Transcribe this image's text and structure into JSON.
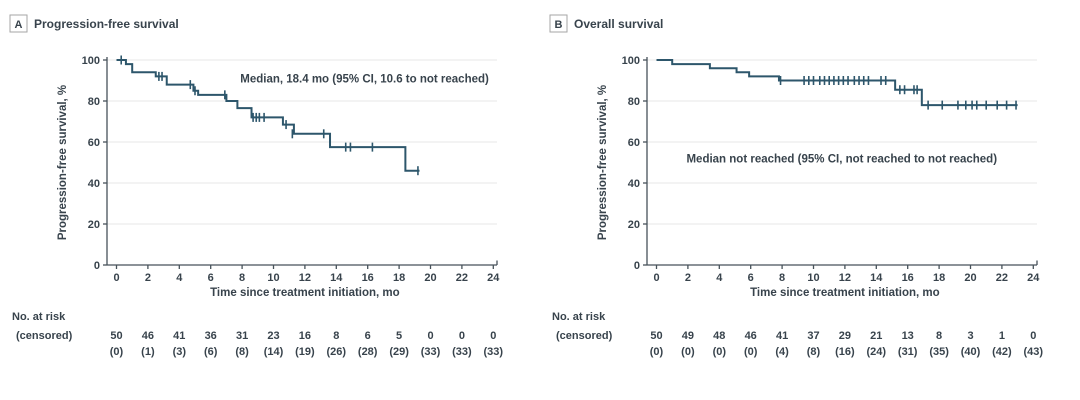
{
  "figure": {
    "risk_header_line1": "No. at risk",
    "risk_header_line2": "(censored)"
  },
  "colors": {
    "curve": "#2d566b",
    "text": "#38434c",
    "grid": "#e7e7e7",
    "axis": "#47525a",
    "panel_box_border": "#a6a6a6",
    "background": "#ffffff"
  },
  "chart_data": [
    {
      "type": "line",
      "subtype": "kaplan-meier-step",
      "panel_label": "A",
      "title": "Progression-free survival",
      "ylabel": "Progression-free survival, %",
      "xlabel": "Time since treatment initiation, mo",
      "annotation": "Median, 18.4 mo (95% CI, 10.6 to not reached)",
      "annotation_xy": [
        15.8,
        89
      ],
      "xlim": [
        0,
        24
      ],
      "ylim": [
        0,
        100
      ],
      "xticks": [
        0,
        2,
        4,
        6,
        8,
        10,
        12,
        14,
        16,
        18,
        20,
        22,
        24
      ],
      "yticks": [
        0,
        20,
        40,
        60,
        80,
        100
      ],
      "grid": true,
      "legend": "none",
      "steps": [
        [
          0,
          100
        ],
        [
          0.6,
          98
        ],
        [
          1.0,
          94
        ],
        [
          2.5,
          92
        ],
        [
          3.2,
          88
        ],
        [
          4.9,
          85
        ],
        [
          5.2,
          83
        ],
        [
          7.0,
          80
        ],
        [
          7.7,
          76.5
        ],
        [
          8.6,
          72
        ],
        [
          10.6,
          68.5
        ],
        [
          11.3,
          64
        ],
        [
          13.6,
          57.5
        ],
        [
          18.4,
          46
        ]
      ],
      "curve_end": 19.3,
      "censors": [
        [
          0.3,
          100
        ],
        [
          2.7,
          92
        ],
        [
          2.9,
          92
        ],
        [
          4.7,
          88
        ],
        [
          5.0,
          85
        ],
        [
          6.9,
          83
        ],
        [
          8.7,
          72
        ],
        [
          8.9,
          72
        ],
        [
          9.1,
          72
        ],
        [
          9.4,
          72
        ],
        [
          10.8,
          68.5
        ],
        [
          11.2,
          64
        ],
        [
          13.2,
          64
        ],
        [
          14.6,
          57.5
        ],
        [
          14.9,
          57.5
        ],
        [
          16.3,
          57.5
        ],
        [
          19.2,
          46
        ]
      ],
      "at_risk": [
        50,
        46,
        41,
        36,
        31,
        23,
        16,
        8,
        6,
        5,
        0,
        0,
        0
      ],
      "censored": [
        "(0)",
        "(1)",
        "(3)",
        "(6)",
        "(8)",
        "(14)",
        "(19)",
        "(26)",
        "(28)",
        "(29)",
        "(33)",
        "(33)",
        "(33)"
      ]
    },
    {
      "type": "line",
      "subtype": "kaplan-meier-step",
      "panel_label": "B",
      "title": "Overall survival",
      "ylabel": "Progression-free survival, %",
      "xlabel": "Time since treatment initiation, mo",
      "annotation": "Median not reached (95% CI, not reached to not reached)",
      "annotation_xy": [
        11.8,
        50
      ],
      "xlim": [
        0,
        24
      ],
      "ylim": [
        0,
        100
      ],
      "xticks": [
        0,
        2,
        4,
        6,
        8,
        10,
        12,
        14,
        16,
        18,
        20,
        22,
        24
      ],
      "yticks": [
        0,
        20,
        40,
        60,
        80,
        100
      ],
      "grid": true,
      "legend": "none",
      "steps": [
        [
          0,
          100
        ],
        [
          1.0,
          98
        ],
        [
          3.4,
          96
        ],
        [
          5.1,
          94
        ],
        [
          5.9,
          92
        ],
        [
          7.8,
          90
        ],
        [
          15.2,
          85.5
        ],
        [
          16.9,
          78
        ]
      ],
      "curve_end": 23.0,
      "censors": [
        [
          7.9,
          90
        ],
        [
          9.4,
          90
        ],
        [
          9.7,
          90
        ],
        [
          10.0,
          90
        ],
        [
          10.4,
          90
        ],
        [
          10.7,
          90
        ],
        [
          11.0,
          90
        ],
        [
          11.3,
          90
        ],
        [
          11.6,
          90
        ],
        [
          11.9,
          90
        ],
        [
          12.2,
          90
        ],
        [
          12.6,
          90
        ],
        [
          12.9,
          90
        ],
        [
          13.2,
          90
        ],
        [
          13.5,
          90
        ],
        [
          14.3,
          90
        ],
        [
          14.6,
          90
        ],
        [
          15.5,
          85.5
        ],
        [
          15.8,
          85.5
        ],
        [
          16.4,
          85.5
        ],
        [
          16.6,
          85.5
        ],
        [
          17.3,
          78
        ],
        [
          18.2,
          78
        ],
        [
          19.2,
          78
        ],
        [
          19.7,
          78
        ],
        [
          20.1,
          78
        ],
        [
          20.4,
          78
        ],
        [
          21.0,
          78
        ],
        [
          21.7,
          78
        ],
        [
          22.3,
          78
        ],
        [
          22.9,
          78
        ]
      ],
      "at_risk": [
        50,
        49,
        48,
        46,
        41,
        37,
        29,
        21,
        13,
        8,
        3,
        1,
        0
      ],
      "censored": [
        "(0)",
        "(0)",
        "(0)",
        "(0)",
        "(4)",
        "(8)",
        "(16)",
        "(24)",
        "(31)",
        "(35)",
        "(40)",
        "(42)",
        "(43)"
      ]
    }
  ]
}
